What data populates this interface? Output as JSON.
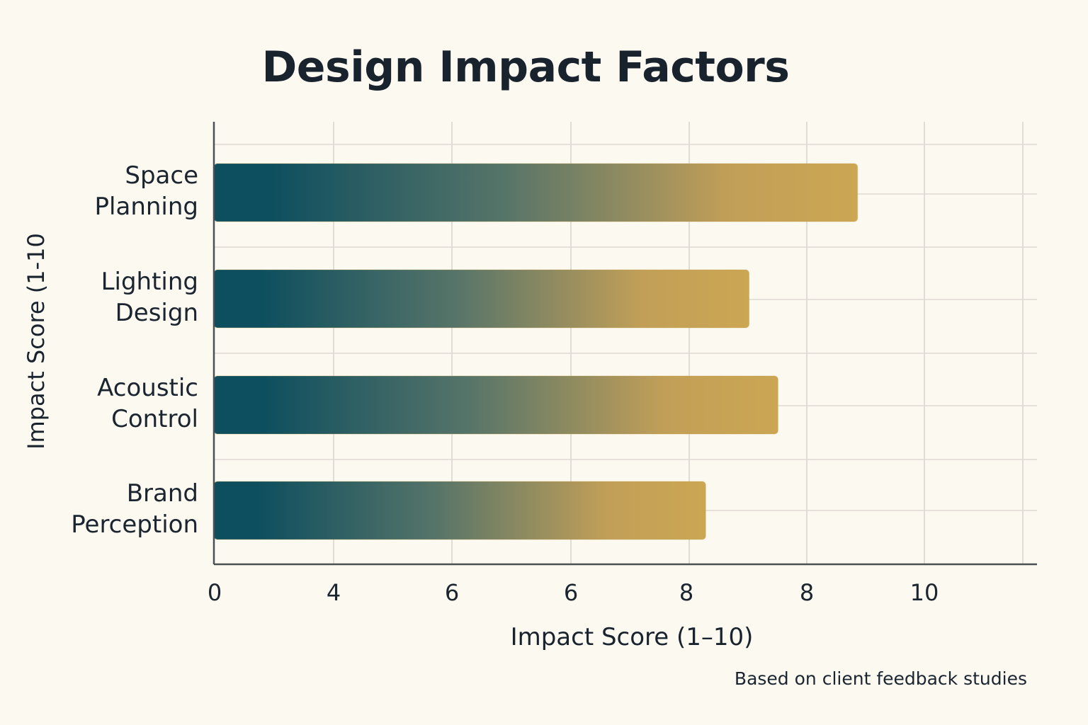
{
  "chart_data": {
    "type": "bar",
    "orientation": "horizontal",
    "title": "Design Impact Factors",
    "xlabel": "Impact Score (1–10)",
    "ylabel": "Impact Score (1-10",
    "categories": [
      [
        "Space",
        "Planning"
      ],
      [
        "Lighting",
        "Design"
      ],
      [
        "Acoustic",
        "Control"
      ],
      [
        "Brand",
        "Perception"
      ]
    ],
    "values": [
      8.9,
      7.4,
      7.8,
      6.8
    ],
    "x_tick_labels": [
      "0",
      "4",
      "6",
      "6",
      "8",
      "8",
      "10"
    ],
    "grid": true,
    "bar_gradient": [
      "#0e4f5f",
      "#c8a252"
    ],
    "footnote": "Based on client feedback studies"
  }
}
